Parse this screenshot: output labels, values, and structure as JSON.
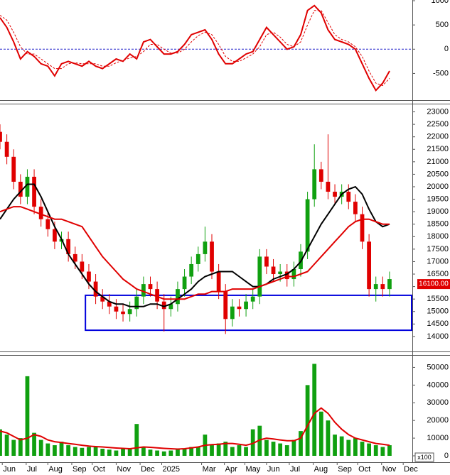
{
  "chart_data": [
    {
      "type": "line",
      "xlim": [
        0,
        362
      ],
      "ylim": [
        -1050,
        1000
      ],
      "yticks": [
        -500,
        0,
        500,
        1000
      ],
      "zero_line": true,
      "x": [
        0,
        6,
        12,
        18,
        24,
        30,
        36,
        42,
        48,
        54,
        60,
        66,
        72,
        78,
        84,
        90,
        96,
        102,
        108,
        114,
        120,
        126,
        132,
        138,
        144,
        150,
        156,
        162,
        168,
        174,
        180,
        186,
        192,
        198,
        204,
        210,
        216,
        222,
        228,
        234,
        240,
        246,
        252,
        258,
        264,
        270,
        276,
        282,
        288,
        294,
        300,
        306,
        312,
        318,
        324,
        330,
        336,
        342
      ],
      "series": [
        {
          "color": "#e00000",
          "dashed": false,
          "values": [
            650,
            450,
            150,
            -200,
            -50,
            -150,
            -300,
            -350,
            -550,
            -300,
            -250,
            -300,
            -350,
            -250,
            -350,
            -400,
            -300,
            -200,
            -250,
            -100,
            -200,
            150,
            200,
            50,
            -100,
            -100,
            -50,
            100,
            300,
            350,
            400,
            200,
            -100,
            -300,
            -300,
            -200,
            -100,
            -50,
            200,
            450,
            300,
            150,
            0,
            50,
            300,
            800,
            900,
            750,
            400,
            200,
            150,
            100,
            0,
            -300,
            -600,
            -850,
            -700,
            -450
          ]
        },
        {
          "color": "#e00000",
          "dashed": true,
          "values": [
            700,
            600,
            350,
            50,
            -100,
            -100,
            -200,
            -300,
            -400,
            -400,
            -300,
            -280,
            -300,
            -300,
            -300,
            -350,
            -350,
            -280,
            -230,
            -180,
            -150,
            -50,
            100,
            100,
            0,
            -80,
            -80,
            0,
            150,
            280,
            350,
            300,
            100,
            -150,
            -250,
            -250,
            -180,
            -100,
            50,
            300,
            350,
            250,
            100,
            50,
            150,
            500,
            800,
            800,
            550,
            300,
            200,
            150,
            50,
            -150,
            -450,
            -700,
            -750,
            -600
          ]
        }
      ]
    },
    {
      "type": "candlestick",
      "xlim": [
        0,
        362
      ],
      "ylim": [
        13400,
        23300
      ],
      "yticks": [
        14000,
        14500,
        15000,
        15500,
        16000,
        16500,
        17000,
        17500,
        18000,
        18500,
        19000,
        19500,
        20000,
        20500,
        21000,
        21500,
        22000,
        22500,
        23000
      ],
      "up_color": "#10a010",
      "down_color": "#e00000",
      "x": [
        0,
        6,
        12,
        18,
        24,
        30,
        36,
        42,
        48,
        54,
        60,
        66,
        72,
        78,
        84,
        90,
        96,
        102,
        108,
        114,
        120,
        126,
        132,
        138,
        144,
        150,
        156,
        162,
        168,
        174,
        180,
        186,
        192,
        198,
        204,
        210,
        216,
        222,
        228,
        234,
        240,
        246,
        252,
        258,
        264,
        270,
        276,
        282,
        288,
        294,
        300,
        306,
        312,
        318,
        324,
        330,
        336,
        342
      ],
      "open": [
        22200,
        21800,
        21200,
        20200,
        19600,
        20400,
        19200,
        18700,
        18300,
        17800,
        17900,
        17300,
        17000,
        16600,
        16200,
        15600,
        15400,
        15200,
        15000,
        14900,
        15100,
        15600,
        16100,
        15900,
        15400,
        15100,
        15300,
        15900,
        16400,
        16900,
        17300,
        17800,
        16600,
        15800,
        14700,
        15200,
        15100,
        15400,
        15600,
        17200,
        16800,
        16500,
        16600,
        16300,
        16700,
        17400,
        19500,
        20700,
        20200,
        19800,
        19600,
        19800,
        19400,
        18900,
        17800,
        15900,
        16100,
        15900
      ],
      "high": [
        22500,
        22100,
        21500,
        20500,
        20700,
        20700,
        19500,
        19000,
        18600,
        18200,
        18200,
        17600,
        17300,
        16900,
        16500,
        15900,
        15700,
        15500,
        15300,
        15400,
        15900,
        16400,
        16400,
        16200,
        15700,
        15600,
        16200,
        16700,
        17200,
        17600,
        18400,
        18100,
        16900,
        16100,
        15500,
        15500,
        15700,
        15900,
        17500,
        17500,
        17100,
        16900,
        16900,
        17000,
        17700,
        19800,
        21700,
        21000,
        22100,
        20100,
        20100,
        20100,
        19700,
        19200,
        18100,
        16400,
        16400,
        16600
      ],
      "low": [
        21500,
        20900,
        19900,
        19300,
        19300,
        18900,
        18400,
        18000,
        17500,
        17500,
        17000,
        16700,
        16300,
        15900,
        15300,
        15100,
        14900,
        14700,
        14600,
        14600,
        14800,
        15300,
        15600,
        15100,
        14200,
        14800,
        15000,
        15600,
        16100,
        16600,
        17000,
        16300,
        15500,
        14100,
        14400,
        14800,
        14800,
        15100,
        15300,
        16500,
        16200,
        16200,
        16000,
        16000,
        16400,
        17100,
        19200,
        19900,
        19500,
        19300,
        19300,
        19100,
        18600,
        17500,
        15600,
        15400,
        15600,
        15600
      ],
      "close": [
        21800,
        21200,
        20200,
        19600,
        20400,
        19200,
        18700,
        18300,
        17800,
        17900,
        17300,
        17000,
        16600,
        16200,
        15600,
        15400,
        15200,
        15000,
        14900,
        15100,
        15600,
        16100,
        15900,
        15400,
        15100,
        15300,
        15900,
        16400,
        16900,
        17300,
        17800,
        16600,
        15800,
        14700,
        15200,
        15100,
        15400,
        15600,
        17200,
        16800,
        16500,
        16600,
        16300,
        16700,
        17400,
        19500,
        20700,
        20200,
        19800,
        19600,
        19800,
        19400,
        18900,
        17800,
        15900,
        16100,
        15900,
        16300
      ],
      "series": [
        {
          "color": "#000000",
          "values": [
            18700,
            19100,
            19500,
            19800,
            20100,
            20100,
            19600,
            19000,
            18400,
            17900,
            17300,
            16900,
            16500,
            16100,
            15800,
            15600,
            15400,
            15300,
            15300,
            15200,
            15200,
            15200,
            15300,
            15300,
            15200,
            15300,
            15500,
            15700,
            15900,
            16200,
            16400,
            16500,
            16600,
            16600,
            16600,
            16400,
            16200,
            16000,
            16000,
            16100,
            16300,
            16400,
            16500,
            16700,
            17000,
            17500,
            18000,
            18500,
            18900,
            19300,
            19700,
            19900,
            20000,
            19700,
            19100,
            18600,
            18400,
            18500
          ]
        },
        {
          "color": "#e00000",
          "values": [
            19000,
            19100,
            19200,
            19200,
            19100,
            19000,
            18900,
            18800,
            18700,
            18700,
            18600,
            18500,
            18400,
            18000,
            17600,
            17200,
            16900,
            16600,
            16300,
            16100,
            15900,
            15800,
            15700,
            15600,
            15500,
            15500,
            15500,
            15500,
            15600,
            15700,
            15700,
            15800,
            15800,
            15800,
            15900,
            15900,
            15900,
            15900,
            16000,
            16100,
            16200,
            16300,
            16400,
            16400,
            16500,
            16600,
            16900,
            17200,
            17500,
            17800,
            18100,
            18400,
            18600,
            18700,
            18700,
            18600,
            18500,
            18500
          ]
        }
      ],
      "box": {
        "color": "#0000dd",
        "x": [
          75,
          362
        ],
        "y": [
          14250,
          15650
        ]
      },
      "last_price": {
        "value": 16100,
        "label": "16100.00"
      }
    },
    {
      "type": "bar",
      "xlim": [
        0,
        362
      ],
      "ylim": [
        0,
        57000
      ],
      "yticks": [
        0,
        10000,
        20000,
        30000,
        40000,
        50000
      ],
      "unit": "x100",
      "color": "#10a010",
      "x": [
        0,
        6,
        12,
        18,
        24,
        30,
        36,
        42,
        48,
        54,
        60,
        66,
        72,
        78,
        84,
        90,
        96,
        102,
        108,
        114,
        120,
        126,
        132,
        138,
        144,
        150,
        156,
        162,
        168,
        174,
        180,
        186,
        192,
        198,
        204,
        210,
        216,
        222,
        228,
        234,
        240,
        246,
        252,
        258,
        264,
        270,
        276,
        282,
        288,
        294,
        300,
        306,
        312,
        318,
        324,
        330,
        336,
        342
      ],
      "values": [
        15000,
        12000,
        9000,
        10000,
        45000,
        13000,
        9000,
        7000,
        6000,
        8000,
        6000,
        5000,
        4500,
        5000,
        5000,
        4000,
        3500,
        3000,
        4000,
        4000,
        18000,
        5000,
        3500,
        3000,
        2500,
        3000,
        4000,
        4000,
        5000,
        5000,
        12000,
        6000,
        7000,
        8000,
        5000,
        6000,
        5000,
        15000,
        17000,
        9000,
        8000,
        7000,
        6000,
        9000,
        14000,
        40000,
        52000,
        25000,
        20000,
        12000,
        11000,
        9000,
        10000,
        8000,
        7000,
        6000,
        5000,
        6000
      ],
      "series": [
        {
          "color": "#e00000",
          "values": [
            14000,
            13000,
            11000,
            9000,
            10000,
            12000,
            11000,
            9000,
            8000,
            7500,
            7000,
            6500,
            6000,
            5500,
            5200,
            5000,
            4700,
            4400,
            4200,
            4000,
            4500,
            5000,
            4800,
            4500,
            4200,
            4000,
            3800,
            4000,
            4500,
            5000,
            6000,
            6300,
            6500,
            7000,
            7000,
            6500,
            6000,
            7000,
            9000,
            10000,
            9500,
            9000,
            8500,
            8500,
            10000,
            17000,
            24000,
            27000,
            24000,
            19000,
            15000,
            12000,
            10000,
            9000,
            8000,
            7000,
            6500,
            6000
          ]
        }
      ],
      "xticks": [
        {
          "value": 2,
          "label": "Jun"
        },
        {
          "value": 23,
          "label": "Jul"
        },
        {
          "value": 42,
          "label": "Aug"
        },
        {
          "value": 63,
          "label": "Sep"
        },
        {
          "value": 81,
          "label": "Oct"
        },
        {
          "value": 102,
          "label": "Nov"
        },
        {
          "value": 123,
          "label": "Dec"
        },
        {
          "value": 142,
          "label": "2025"
        },
        {
          "value": 177,
          "label": "Mar"
        },
        {
          "value": 197,
          "label": "Apr"
        },
        {
          "value": 215,
          "label": "May"
        },
        {
          "value": 234,
          "label": "Jun"
        },
        {
          "value": 254,
          "label": "Jul"
        },
        {
          "value": 275,
          "label": "Aug"
        },
        {
          "value": 296,
          "label": "Sep"
        },
        {
          "value": 314,
          "label": "Oct"
        },
        {
          "value": 335,
          "label": "Nov"
        },
        {
          "value": 354,
          "label": "Dec"
        }
      ]
    }
  ]
}
